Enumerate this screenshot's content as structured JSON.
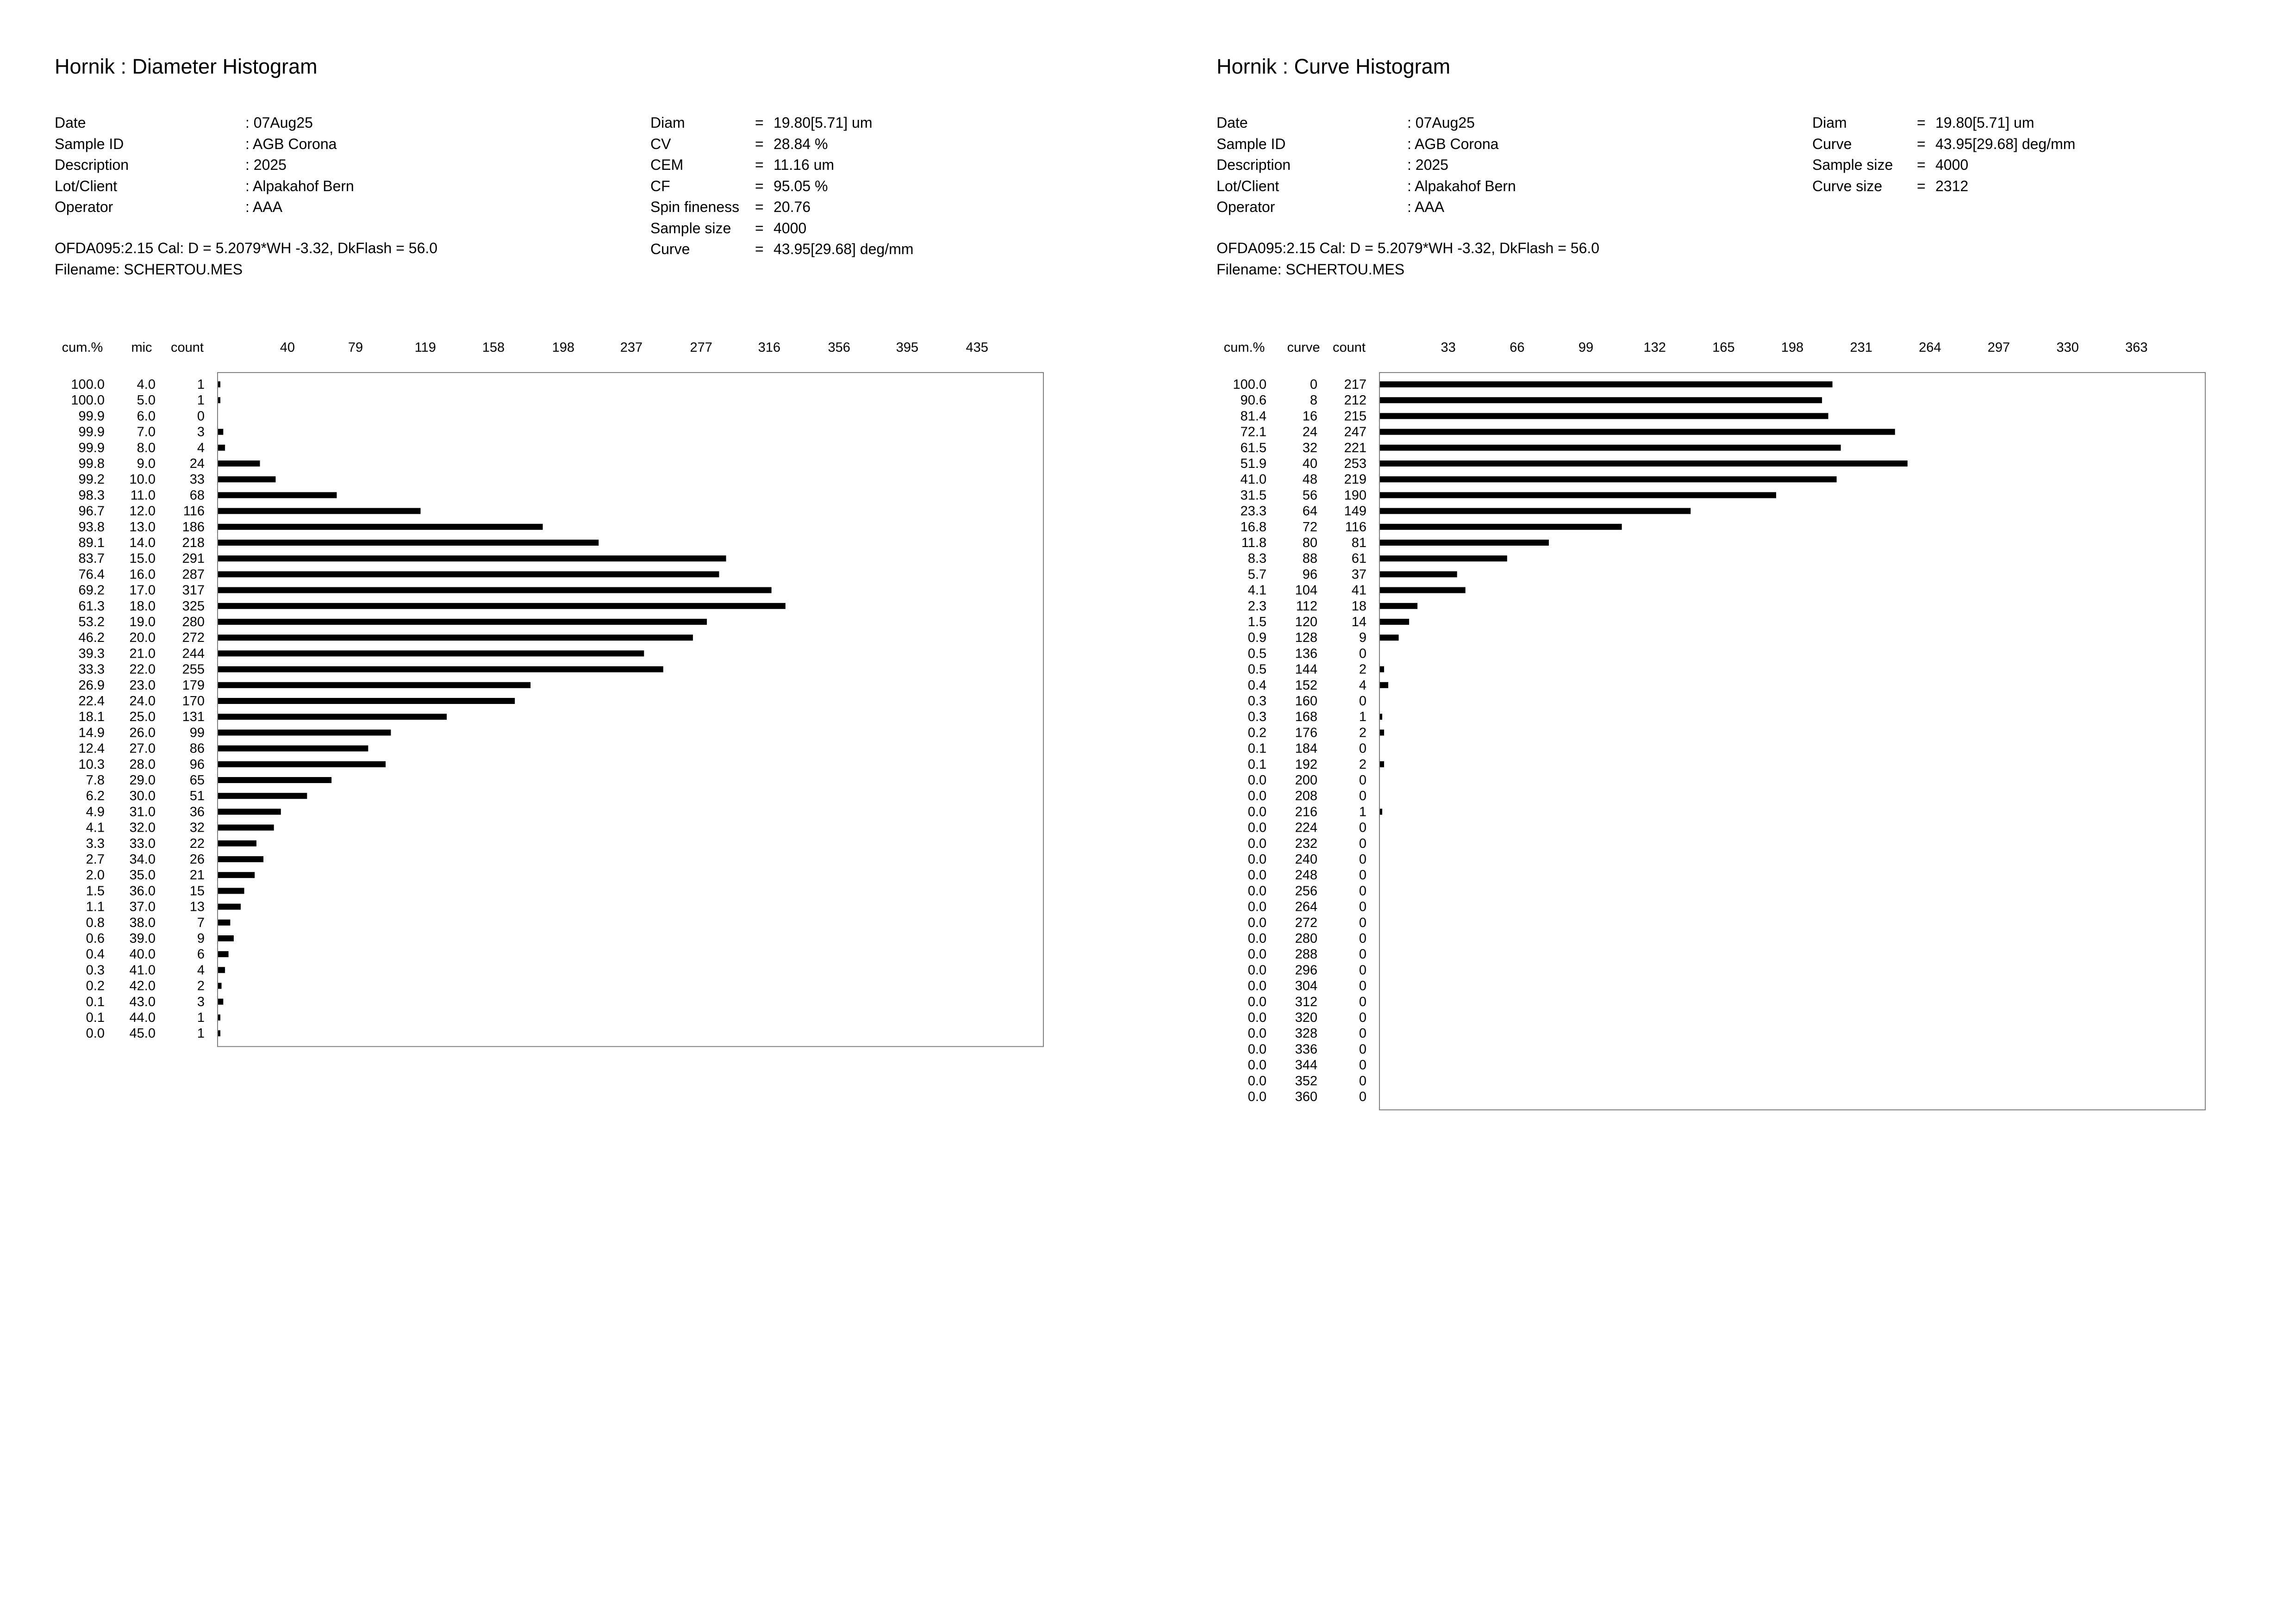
{
  "panels": [
    {
      "title": "Hornik : Diameter Histogram",
      "info": [
        {
          "label": "Date",
          "value": ": 07Aug25"
        },
        {
          "label": "Sample ID",
          "value": ": AGB Corona"
        },
        {
          "label": "Description",
          "value": ": 2025"
        },
        {
          "label": "Lot/Client",
          "value": ": Alpakahof Bern"
        },
        {
          "label": "Operator",
          "value": ": AAA"
        }
      ],
      "stats": [
        {
          "label": "Diam",
          "eq": "=",
          "value": "19.80[5.71] um"
        },
        {
          "label": "CV",
          "eq": "=",
          "value": "28.84 %"
        },
        {
          "label": "CEM",
          "eq": "=",
          "value": "11.16 um"
        },
        {
          "label": "CF",
          "eq": "=",
          "value": "95.05 %"
        },
        {
          "label": "Spin fineness",
          "eq": "=",
          "value": "20.76"
        },
        {
          "label": "Sample size",
          "eq": "=",
          "value": "4000"
        },
        {
          "label": "Curve",
          "eq": "=",
          "value": "43.95[29.68] deg/mm"
        }
      ],
      "calibration": "OFDA095:2.15 Cal: D = 5.2079*WH -3.32, DkFlash =  56.0",
      "filename": "Filename: SCHERTOU.MES"
    },
    {
      "title": "Hornik : Curve Histogram",
      "info": [
        {
          "label": "Date",
          "value": ": 07Aug25"
        },
        {
          "label": "Sample ID",
          "value": ": AGB Corona"
        },
        {
          "label": "Description",
          "value": ": 2025"
        },
        {
          "label": "Lot/Client",
          "value": ": Alpakahof Bern"
        },
        {
          "label": "Operator",
          "value": ": AAA"
        }
      ],
      "stats": [
        {
          "label": "Diam",
          "eq": "=",
          "value": "19.80[5.71] um"
        },
        {
          "label": "Curve",
          "eq": "=",
          "value": "43.95[29.68] deg/mm"
        },
        {
          "label": "Sample size",
          "eq": "=",
          "value": "4000"
        },
        {
          "label": "Curve size",
          "eq": "=",
          "value": "2312"
        }
      ],
      "calibration": "OFDA095:2.15 Cal: D = 5.2079*WH -3.32, DkFlash =  56.0",
      "filename": "Filename: SCHERTOU.MES"
    }
  ],
  "chart_data": [
    {
      "type": "bar",
      "orientation": "horizontal",
      "headers": [
        "cum.%",
        "mic",
        "count"
      ],
      "xticks": [
        "40",
        "79",
        "119",
        "158",
        "198",
        "237",
        "277",
        "316",
        "356",
        "395",
        "435"
      ],
      "xlim": [
        0,
        473
      ],
      "cum": [
        "100.0",
        "100.0",
        "99.9",
        "99.9",
        "99.9",
        "99.8",
        "99.2",
        "98.3",
        "96.7",
        "93.8",
        "89.1",
        "83.7",
        "76.4",
        "69.2",
        "61.3",
        "53.2",
        "46.2",
        "39.3",
        "33.3",
        "26.9",
        "22.4",
        "18.1",
        "14.9",
        "12.4",
        "10.3",
        "7.8",
        "6.2",
        "4.9",
        "4.1",
        "3.3",
        "2.7",
        "2.0",
        "1.5",
        "1.1",
        "0.8",
        "0.6",
        "0.4",
        "0.3",
        "0.2",
        "0.1",
        "0.1",
        "0.0"
      ],
      "categories": [
        "4.0",
        "5.0",
        "6.0",
        "7.0",
        "8.0",
        "9.0",
        "10.0",
        "11.0",
        "12.0",
        "13.0",
        "14.0",
        "15.0",
        "16.0",
        "17.0",
        "18.0",
        "19.0",
        "20.0",
        "21.0",
        "22.0",
        "23.0",
        "24.0",
        "25.0",
        "26.0",
        "27.0",
        "28.0",
        "29.0",
        "30.0",
        "31.0",
        "32.0",
        "33.0",
        "34.0",
        "35.0",
        "36.0",
        "37.0",
        "38.0",
        "39.0",
        "40.0",
        "41.0",
        "42.0",
        "43.0",
        "44.0",
        "45.0"
      ],
      "values": [
        1,
        1,
        0,
        3,
        4,
        24,
        33,
        68,
        116,
        186,
        218,
        291,
        287,
        317,
        325,
        280,
        272,
        244,
        255,
        179,
        170,
        131,
        99,
        86,
        96,
        65,
        51,
        36,
        32,
        22,
        26,
        21,
        15,
        13,
        7,
        9,
        6,
        4,
        2,
        3,
        1,
        1
      ],
      "color": "#000000"
    },
    {
      "type": "bar",
      "orientation": "horizontal",
      "headers": [
        "cum.%",
        "curve",
        "count"
      ],
      "xticks": [
        "33",
        "66",
        "99",
        "132",
        "165",
        "198",
        "231",
        "264",
        "297",
        "330",
        "363"
      ],
      "xlim": [
        0,
        396
      ],
      "cum": [
        "100.0",
        "90.6",
        "81.4",
        "72.1",
        "61.5",
        "51.9",
        "41.0",
        "31.5",
        "23.3",
        "16.8",
        "11.8",
        "8.3",
        "5.7",
        "4.1",
        "2.3",
        "1.5",
        "0.9",
        "0.5",
        "0.5",
        "0.4",
        "0.3",
        "0.3",
        "0.2",
        "0.1",
        "0.1",
        "0.0",
        "0.0",
        "0.0",
        "0.0",
        "0.0",
        "0.0",
        "0.0",
        "0.0",
        "0.0",
        "0.0",
        "0.0",
        "0.0",
        "0.0",
        "0.0",
        "0.0",
        "0.0",
        "0.0",
        "0.0",
        "0.0",
        "0.0",
        "0.0"
      ],
      "categories": [
        "0",
        "8",
        "16",
        "24",
        "32",
        "40",
        "48",
        "56",
        "64",
        "72",
        "80",
        "88",
        "96",
        "104",
        "112",
        "120",
        "128",
        "136",
        "144",
        "152",
        "160",
        "168",
        "176",
        "184",
        "192",
        "200",
        "208",
        "216",
        "224",
        "232",
        "240",
        "248",
        "256",
        "264",
        "272",
        "280",
        "288",
        "296",
        "304",
        "312",
        "320",
        "328",
        "336",
        "344",
        "352",
        "360"
      ],
      "values": [
        217,
        212,
        215,
        247,
        221,
        253,
        219,
        190,
        149,
        116,
        81,
        61,
        37,
        41,
        18,
        14,
        9,
        0,
        2,
        4,
        0,
        1,
        2,
        0,
        2,
        0,
        0,
        1,
        0,
        0,
        0,
        0,
        0,
        0,
        0,
        0,
        0,
        0,
        0,
        0,
        0,
        0,
        0,
        0,
        0,
        0
      ],
      "color": "#000000"
    }
  ]
}
